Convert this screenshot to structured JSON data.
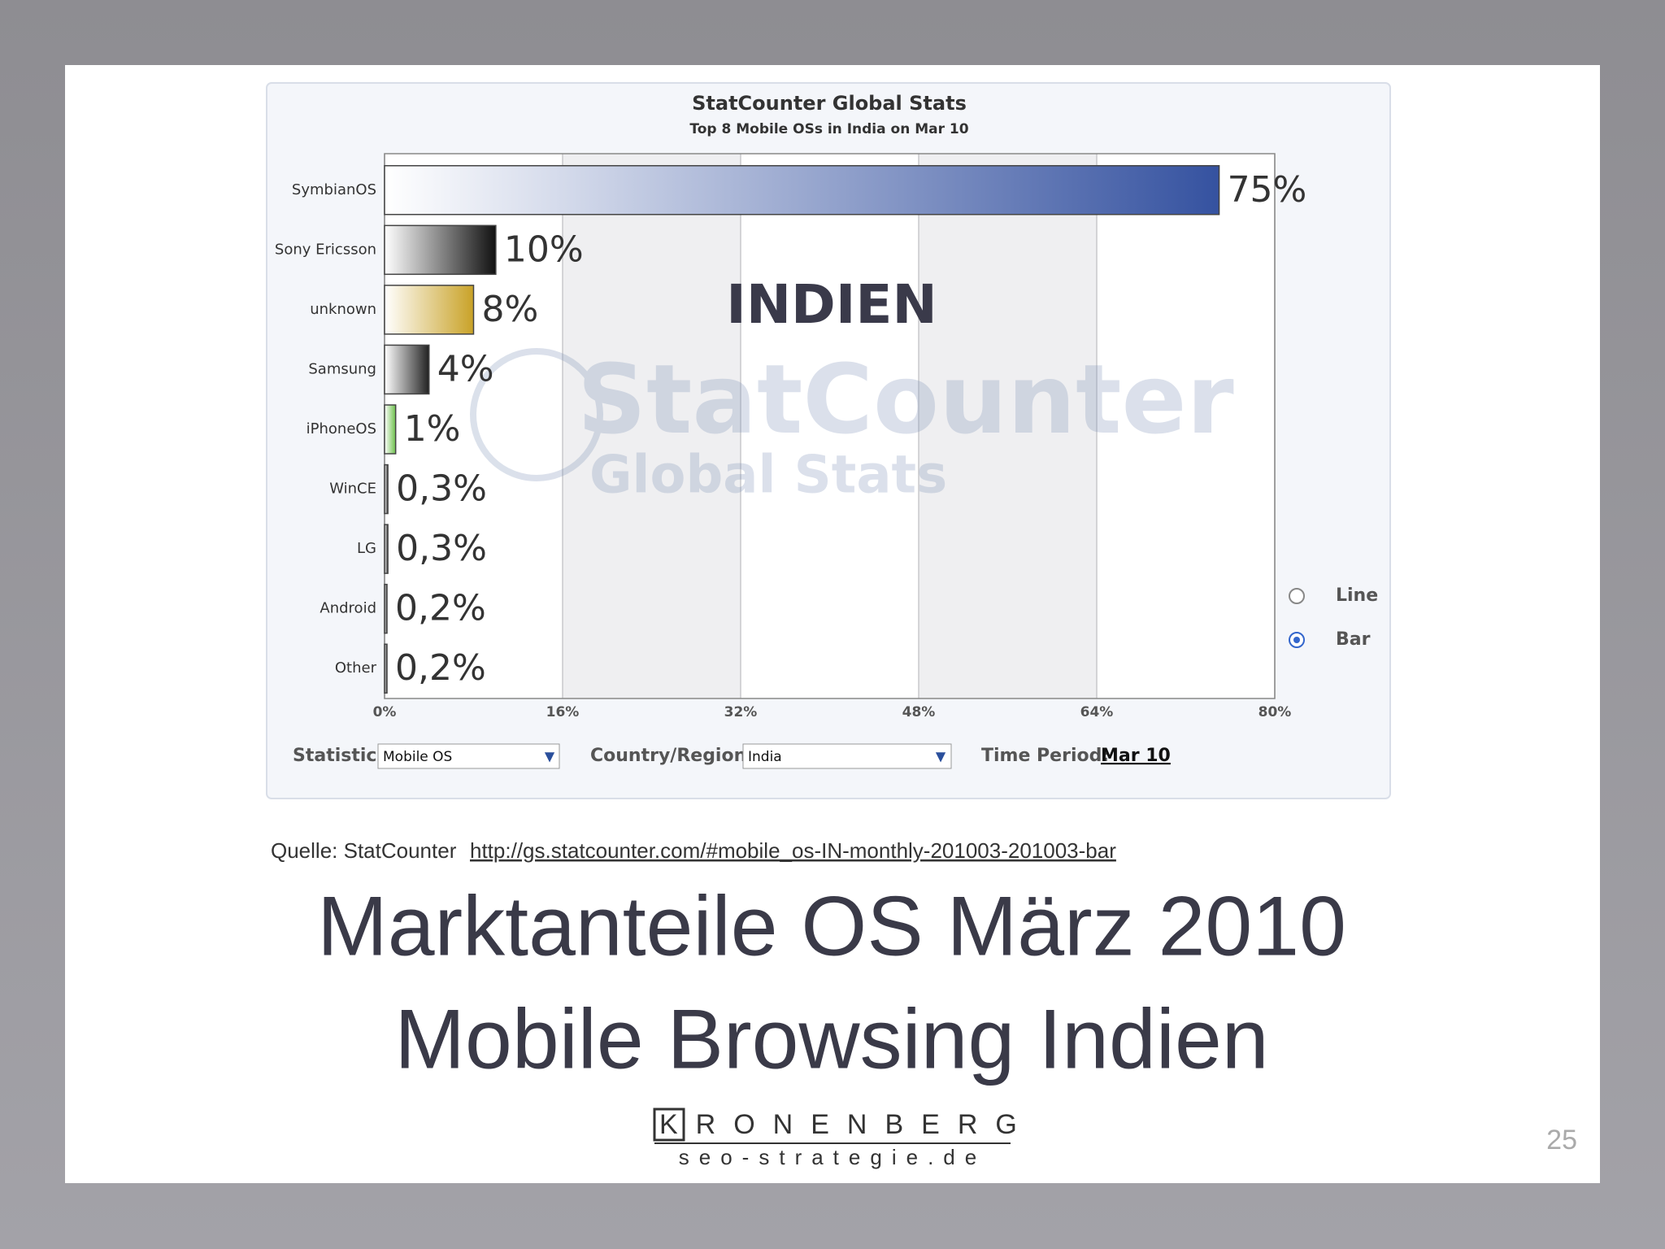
{
  "chart_data": {
    "type": "bar",
    "orientation": "horizontal",
    "title": "StatCounter Global Stats",
    "subtitle": "Top 8 Mobile OSs in India on Mar 10",
    "annotation": "INDIEN",
    "watermark": [
      "StatCounter",
      "Global Stats"
    ],
    "categories": [
      "SymbianOS",
      "Sony Ericsson",
      "unknown",
      "Samsung",
      "iPhoneOS",
      "WinCE",
      "LG",
      "Android",
      "Other"
    ],
    "values": [
      75,
      10,
      8,
      4,
      1,
      0.3,
      0.3,
      0.2,
      0.2
    ],
    "value_labels": [
      "75%",
      "10%",
      "8%",
      "4%",
      "1%",
      "0,3%",
      "0,3%",
      "0,2%",
      "0,2%"
    ],
    "colors": [
      "#3552a0",
      "#111111",
      "#c9a227",
      "#222222",
      "#6cc04a",
      "#333333",
      "#333333",
      "#333333",
      "#333333"
    ],
    "xlim": [
      0,
      80
    ],
    "xticks": [
      {
        "value": 0,
        "label": "0%"
      },
      {
        "value": 16,
        "label": "16%"
      },
      {
        "value": 32,
        "label": "32%"
      },
      {
        "value": 48,
        "label": "48%"
      },
      {
        "value": 64,
        "label": "64%"
      },
      {
        "value": 80,
        "label": "80%"
      }
    ],
    "grid": true,
    "chart_options": [
      "Line",
      "Bar"
    ],
    "controls": {
      "statistic_label": "Statistic:",
      "statistic_value": "Mobile OS",
      "country_label": "Country/Region:",
      "country_value": "India",
      "period_label": "Time Period:",
      "period_value": "Mar 10"
    }
  },
  "slide": {
    "source_label": "Quelle: StatCounter",
    "source_url": "http://gs.statcounter.com/#mobile_os-IN-monthly-201003-201003-bar",
    "title_lines": [
      "Marktanteile OS März 2010",
      "Mobile Browsing Indien"
    ],
    "logo_name": "KRONENBERG",
    "logo_domain": "seo-strategie.de",
    "page_number": 25
  }
}
